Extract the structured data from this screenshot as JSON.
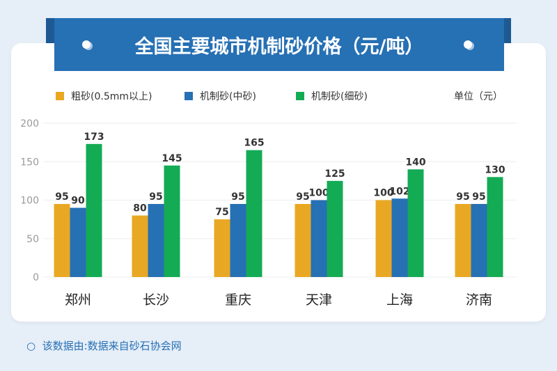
{
  "title": "全国主要城市机制砂价格（元/吨）",
  "unit": "单位（元）",
  "footer": "该数据由:数据来自砂石协会网",
  "chart_data": {
    "type": "bar",
    "title": "全国主要城市机制砂价格（元/吨）",
    "categories": [
      "郑州",
      "长沙",
      "重庆",
      "天津",
      "上海",
      "济南"
    ],
    "series": [
      {
        "name": "粗砂(0.5mm以上)",
        "color": "#e9a823",
        "values": [
          95,
          80,
          75,
          95,
          100,
          95
        ]
      },
      {
        "name": "机制砂(中砂)",
        "color": "#2670b4",
        "values": [
          90,
          95,
          95,
          100,
          102,
          95
        ]
      },
      {
        "name": "机制砂(细砂)",
        "color": "#14ab55",
        "values": [
          173,
          145,
          165,
          125,
          140,
          130
        ]
      }
    ],
    "yticks": [
      0,
      50,
      100,
      150,
      200
    ],
    "ylim": [
      0,
      200
    ],
    "grid": true,
    "legend": "top-left"
  }
}
